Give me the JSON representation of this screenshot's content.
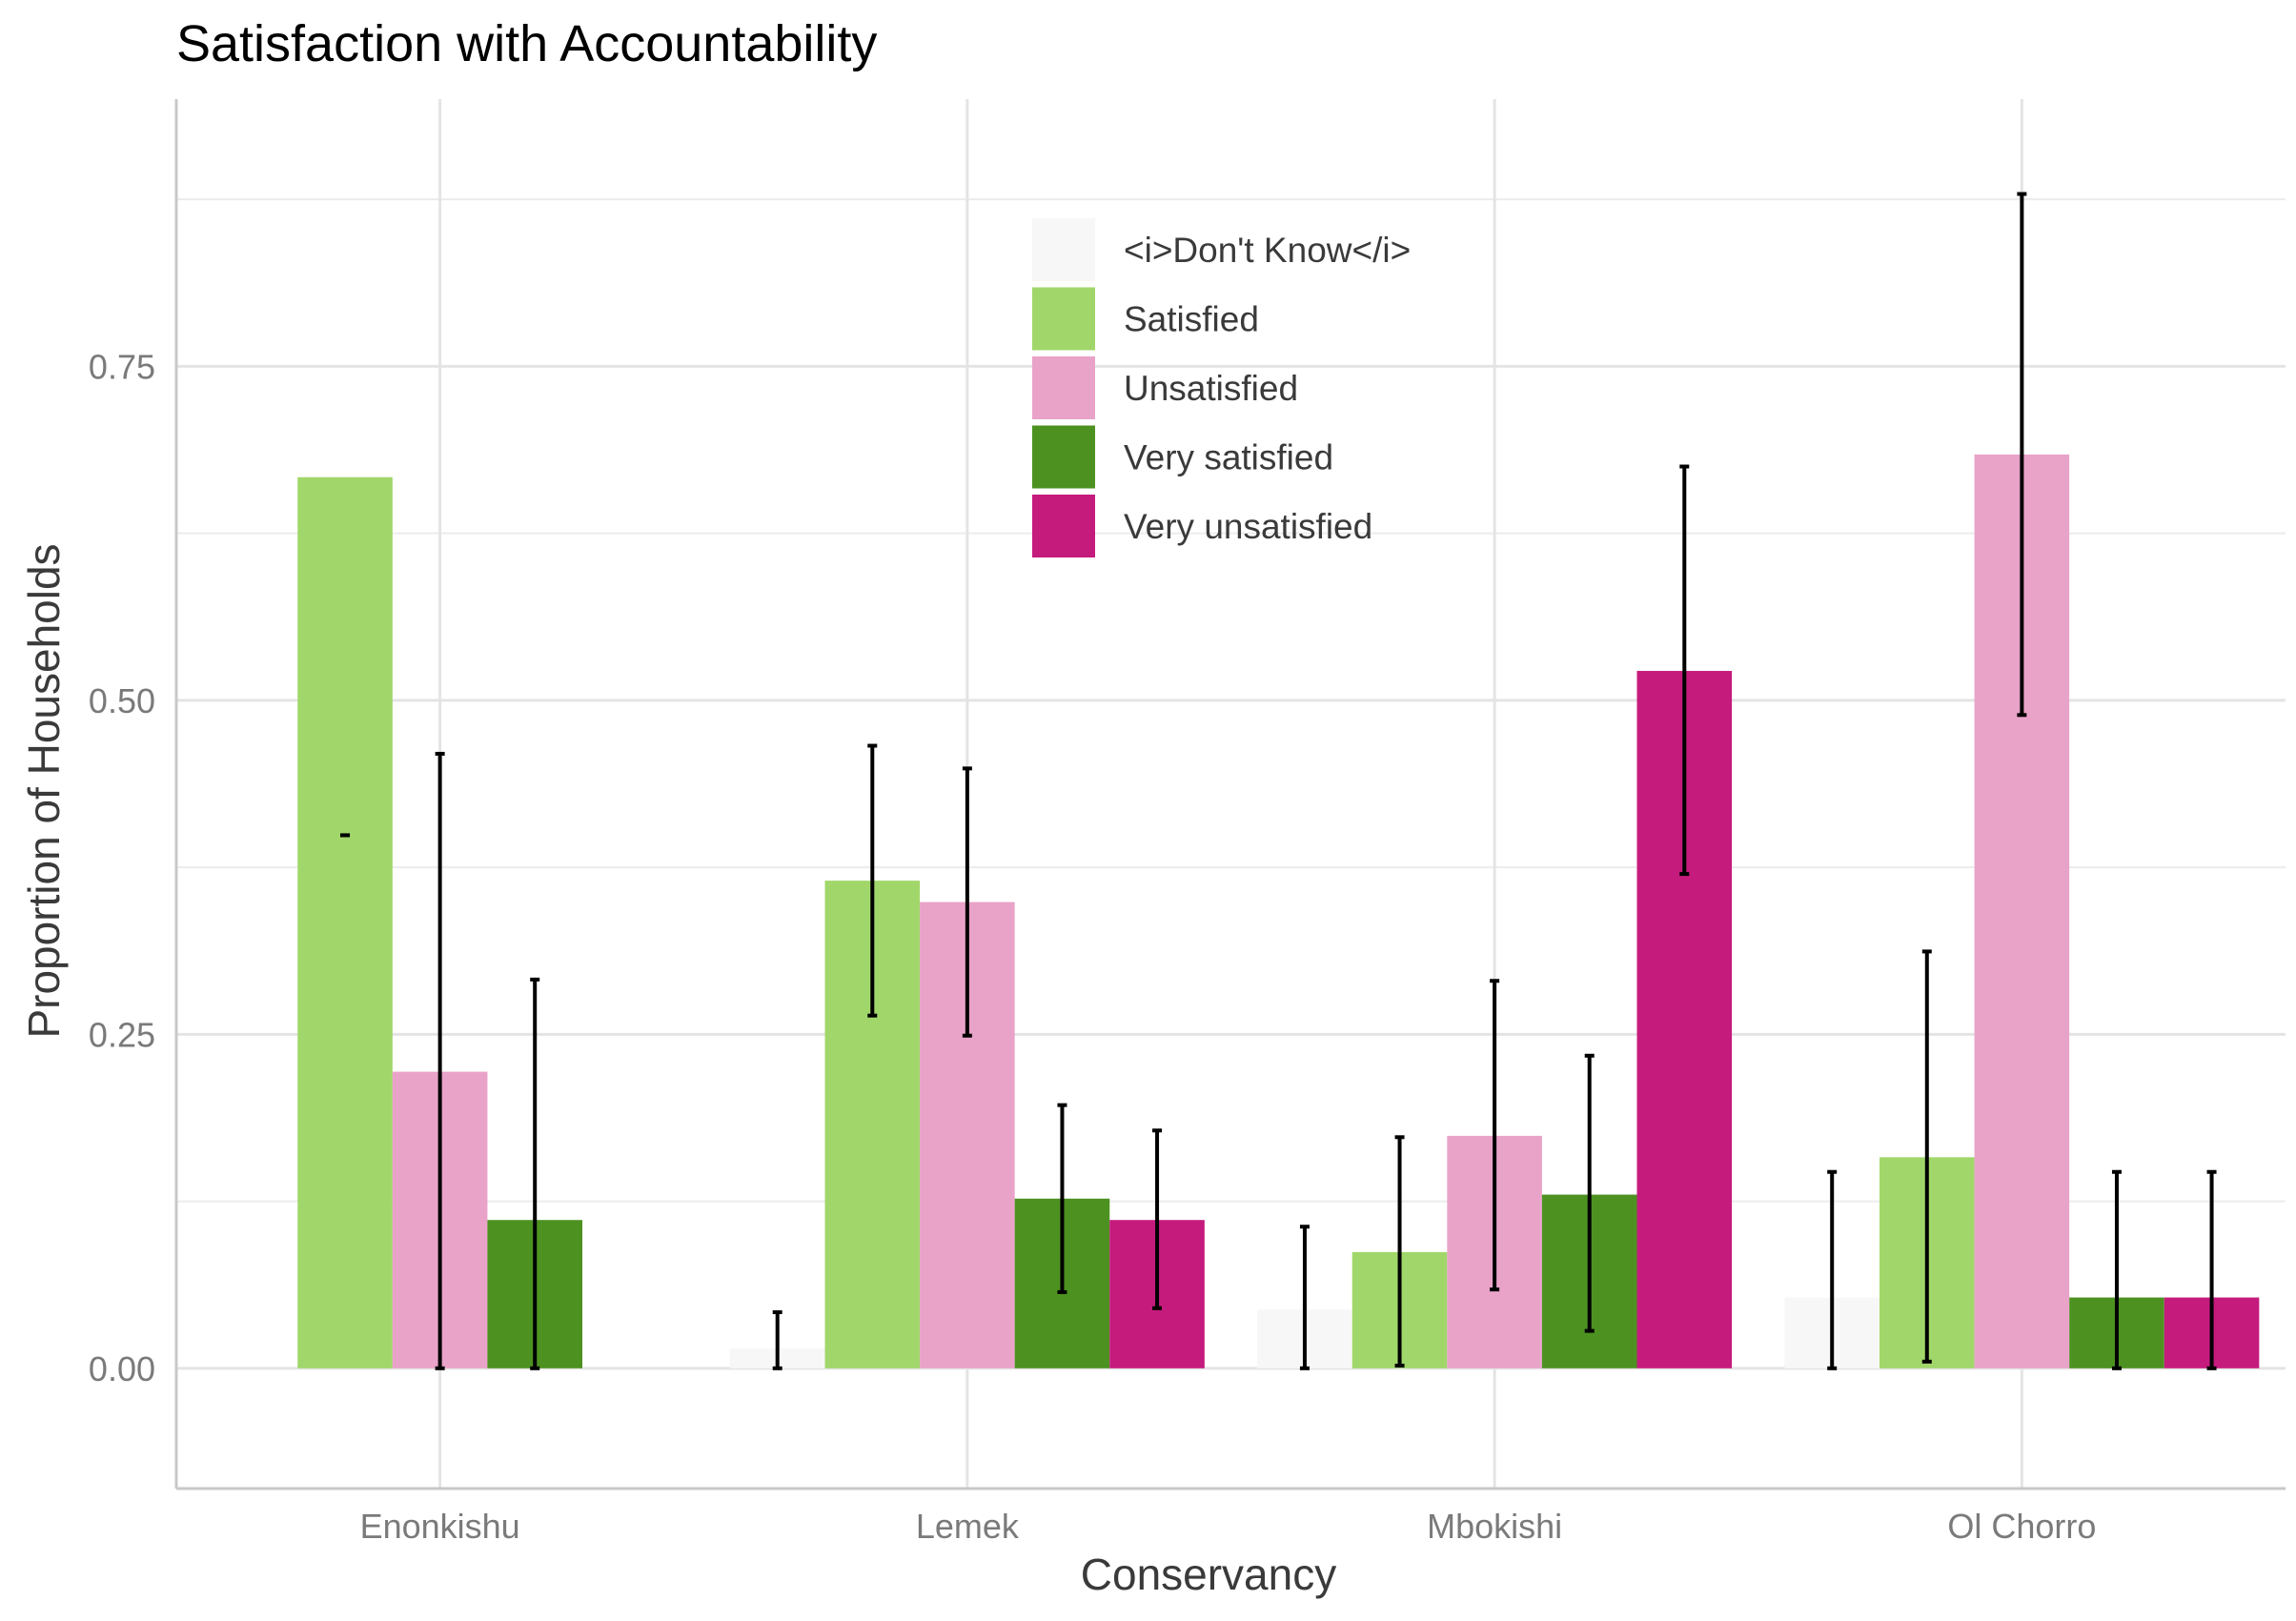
{
  "chart_data": {
    "type": "bar",
    "title": "Satisfaction with Accountability",
    "xlabel": "Conservancy",
    "ylabel": "Proportion of Households",
    "categories": [
      "Enonkishu",
      "Lemek",
      "Mbokishi",
      "Ol Chorro"
    ],
    "ylim": [
      -0.09,
      0.95
    ],
    "yticks": [
      0,
      0.25,
      0.5,
      0.75
    ],
    "ytick_labels": [
      "0.00",
      "0.25",
      "0.50",
      "0.75"
    ],
    "grid": true,
    "legend_position": "inside-top-center",
    "series": [
      {
        "name": "<i>Don't Know</i>",
        "color": "#f7f7f7",
        "values": [
          null,
          0.015,
          0.044,
          0.053
        ],
        "ci_low": [
          null,
          0.0,
          0.0,
          0.0
        ],
        "ci_high": [
          null,
          0.042,
          0.106,
          0.147
        ]
      },
      {
        "name": "Satisfied",
        "color": "#a1d76a",
        "values": [
          0.667,
          0.365,
          0.087,
          0.158
        ],
        "ci_low": [
          0.399,
          0.264,
          0.002,
          0.005
        ],
        "ci_high": [
          0.399,
          0.466,
          0.173,
          0.312
        ]
      },
      {
        "name": "Unsatisfied",
        "color": "#e9a3c9",
        "values": [
          0.222,
          0.349,
          0.174,
          0.684
        ],
        "ci_low": [
          0.0,
          0.249,
          0.059,
          0.489
        ],
        "ci_high": [
          0.46,
          0.449,
          0.29,
          0.879
        ]
      },
      {
        "name": "Very satisfied",
        "color": "#4d9221",
        "values": [
          0.111,
          0.127,
          0.13,
          0.053
        ],
        "ci_low": [
          0.0,
          0.057,
          0.028,
          0.0
        ],
        "ci_high": [
          0.291,
          0.197,
          0.234,
          0.147
        ]
      },
      {
        "name": "Very unsatisfied",
        "color": "#c51b7d",
        "values": [
          null,
          0.111,
          0.522,
          0.053
        ],
        "ci_low": [
          null,
          0.045,
          0.37,
          0.0
        ],
        "ci_high": [
          null,
          0.178,
          0.675,
          0.147
        ]
      }
    ]
  }
}
